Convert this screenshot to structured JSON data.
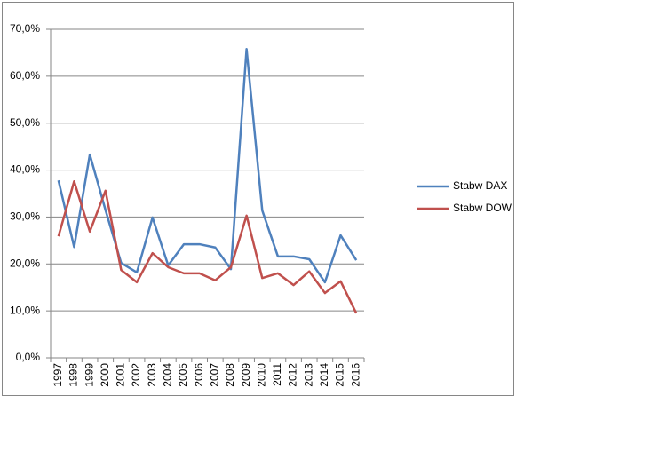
{
  "chart_data": {
    "type": "line",
    "categories": [
      "1997",
      "1998",
      "1999",
      "2000",
      "2001",
      "2002",
      "2003",
      "2004",
      "2005",
      "2006",
      "2007",
      "2008",
      "2009",
      "2010",
      "2011",
      "2012",
      "2013",
      "2014",
      "2015",
      "2016"
    ],
    "series": [
      {
        "name": "Stabw DAX",
        "color": "#4f81bd",
        "values": [
          37.8,
          23.6,
          43.3,
          31.5,
          20.2,
          18.2,
          29.9,
          19.7,
          24.2,
          24.2,
          23.5,
          18.9,
          65.8,
          31.4,
          21.6,
          21.6,
          21.0,
          16.1,
          26.1,
          20.8
        ]
      },
      {
        "name": "Stabw DOW",
        "color": "#c0504d",
        "values": [
          25.9,
          37.6,
          26.9,
          35.6,
          18.7,
          16.1,
          22.3,
          19.3,
          18.0,
          18.0,
          16.5,
          19.3,
          30.3,
          17.0,
          18.0,
          15.5,
          18.4,
          13.8,
          16.3,
          9.5
        ]
      }
    ],
    "ylim": [
      0,
      70
    ],
    "yticks": [
      {
        "value": 0,
        "label": "0,0%"
      },
      {
        "value": 10,
        "label": "10,0%"
      },
      {
        "value": 20,
        "label": "20,0%"
      },
      {
        "value": 30,
        "label": "30,0%"
      },
      {
        "value": 40,
        "label": "40,0%"
      },
      {
        "value": 50,
        "label": "50,0%"
      },
      {
        "value": 60,
        "label": "60,0%"
      },
      {
        "value": 70,
        "label": "70,0%"
      }
    ],
    "grid": true,
    "legend": "right"
  }
}
